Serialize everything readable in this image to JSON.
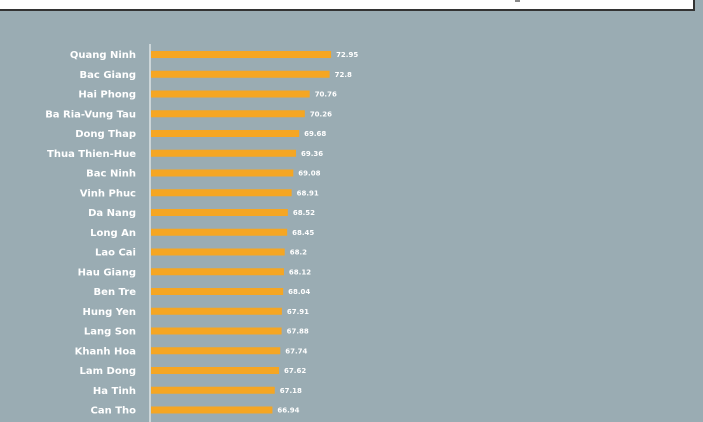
{
  "chart_data": {
    "type": "bar",
    "orientation": "horizontal",
    "categories": [
      "Quang Ninh",
      "Bac Giang",
      "Hai Phong",
      "Ba Ria-Vung Tau",
      "Dong Thap",
      "Thua Thien-Hue",
      "Bac Ninh",
      "Vinh Phuc",
      "Da Nang",
      "Long An",
      "Lao Cai",
      "Hau Giang",
      "Ben Tre",
      "Hung Yen",
      "Lang Son",
      "Khanh Hoa",
      "Lam Dong",
      "Ha Tinh",
      "Can Tho"
    ],
    "values": [
      72.95,
      72.8,
      70.76,
      70.26,
      69.68,
      69.36,
      69.08,
      68.91,
      68.52,
      68.45,
      68.2,
      68.12,
      68.04,
      67.91,
      67.88,
      67.74,
      67.62,
      67.18,
      66.94
    ],
    "value_labels": [
      "72.95",
      "72.8",
      "70.76",
      "70.26",
      "69.68",
      "69.36",
      "69.08",
      "68.91",
      "68.52",
      "68.45",
      "68.2",
      "68.12",
      "68.04",
      "67.91",
      "67.88",
      "67.74",
      "67.62",
      "67.18",
      "66.94"
    ],
    "xlim": [
      54.5,
      74
    ],
    "grid": false,
    "colors": {
      "bar": "#f5a623",
      "background": "#9aacb3",
      "axis": "#ffffff"
    }
  }
}
